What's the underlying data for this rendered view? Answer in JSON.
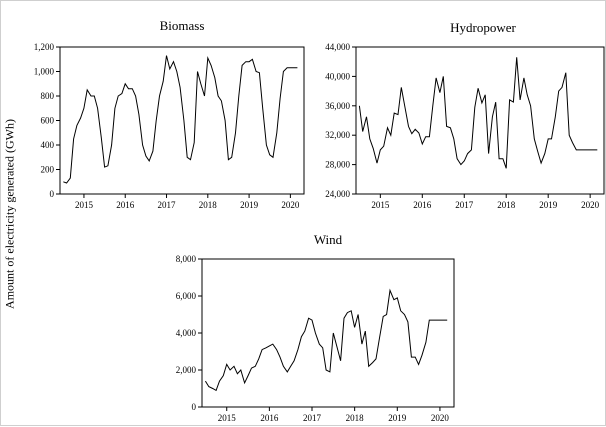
{
  "figure": {
    "ylabel": "Amount of electricity generated (GWh)"
  },
  "chart_data": [
    {
      "type": "line",
      "title": "Biomass",
      "ylabel": "Amount of electricity generated (GWh)",
      "ylim": [
        0,
        1200
      ],
      "yticks": [
        0,
        200,
        400,
        600,
        800,
        1000,
        1200
      ],
      "ytick_labels": [
        "0",
        "200",
        "400",
        "600",
        "800",
        "1,000",
        "1,200"
      ],
      "xlim": [
        2014.42,
        2020.33
      ],
      "xticks": [
        2015,
        2016,
        2017,
        2018,
        2019,
        2020
      ],
      "xtick_labels": [
        "2015",
        "2016",
        "2017",
        "2018",
        "2019",
        "2020"
      ],
      "grid": false,
      "series": [
        {
          "x": [
            2014.5,
            2014.58,
            2014.67,
            2014.75,
            2014.83,
            2014.92,
            2015.0,
            2015.08,
            2015.17,
            2015.25,
            2015.33,
            2015.42,
            2015.5,
            2015.58,
            2015.67,
            2015.75,
            2015.83,
            2015.92,
            2016.0,
            2016.08,
            2016.17,
            2016.25,
            2016.33,
            2016.42,
            2016.5,
            2016.58,
            2016.67,
            2016.75,
            2016.83,
            2016.92,
            2017.0,
            2017.08,
            2017.17,
            2017.25,
            2017.33,
            2017.42,
            2017.5,
            2017.58,
            2017.67,
            2017.75,
            2017.83,
            2017.92,
            2018.0,
            2018.08,
            2018.17,
            2018.25,
            2018.33,
            2018.42,
            2018.5,
            2018.58,
            2018.67,
            2018.75,
            2018.83,
            2018.92,
            2019.0,
            2019.08,
            2019.17,
            2019.25,
            2019.33,
            2019.42,
            2019.5,
            2019.58,
            2019.67,
            2019.75,
            2019.83,
            2019.92,
            2020.0,
            2020.08,
            2020.17
          ],
          "values": [
            100,
            90,
            130,
            450,
            560,
            620,
            700,
            850,
            800,
            800,
            700,
            460,
            220,
            230,
            400,
            700,
            800,
            820,
            900,
            860,
            860,
            800,
            650,
            400,
            310,
            270,
            350,
            600,
            800,
            920,
            1130,
            1020,
            1080,
            1000,
            870,
            600,
            300,
            280,
            420,
            1000,
            900,
            800,
            1110,
            1050,
            950,
            800,
            760,
            600,
            280,
            300,
            500,
            800,
            1050,
            1080,
            1080,
            1100,
            1000,
            990,
            700,
            400,
            320,
            300,
            500,
            780,
            1000,
            1030,
            1030,
            1030,
            1030
          ]
        }
      ]
    },
    {
      "type": "line",
      "title": "Hydropower",
      "ylim": [
        24000,
        44000
      ],
      "yticks": [
        24000,
        28000,
        32000,
        36000,
        40000,
        44000
      ],
      "ytick_labels": [
        "24,000",
        "28,000",
        "32,000",
        "36,000",
        "40,000",
        "44,000"
      ],
      "xlim": [
        2014.42,
        2020.33
      ],
      "xticks": [
        2015,
        2016,
        2017,
        2018,
        2019,
        2020
      ],
      "xtick_labels": [
        "2015",
        "2016",
        "2017",
        "2018",
        "2019",
        "2020"
      ],
      "grid": false,
      "series": [
        {
          "x": [
            2014.5,
            2014.58,
            2014.67,
            2014.75,
            2014.83,
            2014.92,
            2015.0,
            2015.08,
            2015.17,
            2015.25,
            2015.33,
            2015.42,
            2015.5,
            2015.58,
            2015.67,
            2015.75,
            2015.83,
            2015.92,
            2016.0,
            2016.08,
            2016.17,
            2016.25,
            2016.33,
            2016.42,
            2016.5,
            2016.58,
            2016.67,
            2016.75,
            2016.83,
            2016.92,
            2017.0,
            2017.08,
            2017.17,
            2017.25,
            2017.33,
            2017.42,
            2017.5,
            2017.58,
            2017.67,
            2017.75,
            2017.83,
            2017.92,
            2018.0,
            2018.08,
            2018.17,
            2018.25,
            2018.33,
            2018.42,
            2018.5,
            2018.58,
            2018.67,
            2018.75,
            2018.83,
            2018.92,
            2019.0,
            2019.08,
            2019.17,
            2019.25,
            2019.33,
            2019.42,
            2019.5,
            2019.58,
            2019.67,
            2019.75,
            2019.83,
            2019.92,
            2020.0,
            2020.08,
            2020.17
          ],
          "values": [
            36000,
            32500,
            34500,
            31500,
            30200,
            28200,
            30000,
            30500,
            33000,
            32000,
            35000,
            34800,
            38500,
            36000,
            33200,
            32200,
            32800,
            32300,
            30800,
            31800,
            31800,
            36000,
            39800,
            37800,
            40000,
            33200,
            33000,
            31500,
            28800,
            28000,
            28500,
            29500,
            30000,
            35800,
            38400,
            36400,
            37500,
            29500,
            34500,
            36500,
            28800,
            28800,
            27500,
            36800,
            36500,
            42600,
            36800,
            39800,
            37500,
            36000,
            31500,
            29800,
            28200,
            29500,
            31500,
            31500,
            34500,
            38000,
            38500,
            40500,
            32000,
            31000,
            30000,
            30000,
            30000,
            30000,
            30000,
            30000,
            30000
          ]
        }
      ]
    },
    {
      "type": "line",
      "title": "Wind",
      "ylim": [
        0,
        8000
      ],
      "yticks": [
        0,
        2000,
        4000,
        6000,
        8000
      ],
      "ytick_labels": [
        "0",
        "2,000",
        "4,000",
        "6,000",
        "8,000"
      ],
      "xlim": [
        2014.42,
        2020.33
      ],
      "xticks": [
        2015,
        2016,
        2017,
        2018,
        2019,
        2020
      ],
      "xtick_labels": [
        "2015",
        "2016",
        "2017",
        "2018",
        "2019",
        "2020"
      ],
      "grid": false,
      "series": [
        {
          "x": [
            2014.5,
            2014.58,
            2014.67,
            2014.75,
            2014.83,
            2014.92,
            2015.0,
            2015.08,
            2015.17,
            2015.25,
            2015.33,
            2015.42,
            2015.5,
            2015.58,
            2015.67,
            2015.75,
            2015.83,
            2015.92,
            2016.0,
            2016.08,
            2016.17,
            2016.25,
            2016.33,
            2016.42,
            2016.5,
            2016.58,
            2016.67,
            2016.75,
            2016.83,
            2016.92,
            2017.0,
            2017.08,
            2017.17,
            2017.25,
            2017.33,
            2017.42,
            2017.5,
            2017.58,
            2017.67,
            2017.75,
            2017.83,
            2017.92,
            2018.0,
            2018.08,
            2018.17,
            2018.25,
            2018.33,
            2018.42,
            2018.5,
            2018.58,
            2018.67,
            2018.75,
            2018.83,
            2018.92,
            2019.0,
            2019.08,
            2019.17,
            2019.25,
            2019.33,
            2019.42,
            2019.5,
            2019.58,
            2019.67,
            2019.75,
            2019.83,
            2019.92,
            2020.0,
            2020.08,
            2020.17
          ],
          "values": [
            1400,
            1100,
            1000,
            900,
            1400,
            1700,
            2300,
            2000,
            2200,
            1800,
            2000,
            1300,
            1700,
            2100,
            2200,
            2600,
            3100,
            3200,
            3300,
            3400,
            3100,
            2700,
            2200,
            1900,
            2200,
            2500,
            3100,
            3800,
            4100,
            4800,
            4700,
            4000,
            3400,
            3200,
            2000,
            1900,
            4000,
            3300,
            2500,
            4800,
            5100,
            5200,
            4300,
            5000,
            3400,
            4100,
            2200,
            2400,
            2600,
            3700,
            4900,
            5000,
            6300,
            5800,
            5900,
            5200,
            5000,
            4600,
            2700,
            2700,
            2300,
            2800,
            3500,
            4700,
            4700,
            4700,
            4700,
            4700,
            4700
          ]
        }
      ]
    }
  ]
}
